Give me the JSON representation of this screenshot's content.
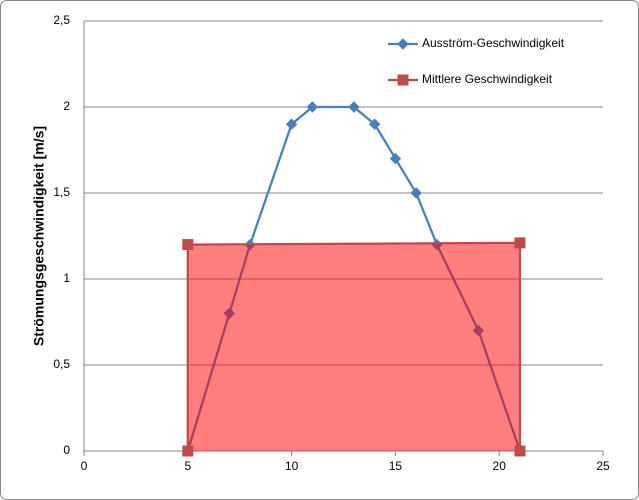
{
  "chart_data": {
    "type": "line",
    "y_label": "Strömungsgeschwindigkeit [m/s]",
    "xlim": [
      0,
      25
    ],
    "xticks": [
      0,
      5,
      10,
      15,
      20,
      25
    ],
    "ylim": [
      0,
      2.5
    ],
    "yticks": [
      0,
      {
        "value": 0.5,
        "label": "0,5"
      },
      1,
      {
        "value": 1.5,
        "label": "1,5"
      },
      2,
      {
        "value": 2.5,
        "label": "2,5"
      }
    ],
    "grid": true,
    "legend": "top-right",
    "series": [
      {
        "name": "Ausström-Geschwindigkeit",
        "color": "#4a7ebb",
        "marker": "diamond",
        "x": [
          5,
          7,
          8,
          10,
          11,
          13,
          14,
          15,
          16,
          17,
          19,
          21
        ],
        "values": [
          0,
          0.8,
          1.2,
          1.9,
          2.0,
          2.0,
          1.9,
          1.7,
          1.5,
          1.2,
          0.7,
          0
        ]
      },
      {
        "name": "Mittlere Geschwindigkeit",
        "color": "#be4b48",
        "marker": "square",
        "fill": "#ff0000",
        "fill_opacity": 0.5,
        "x": [
          5,
          5,
          21,
          21
        ],
        "values": [
          0,
          1.2,
          1.21,
          0
        ]
      }
    ]
  }
}
